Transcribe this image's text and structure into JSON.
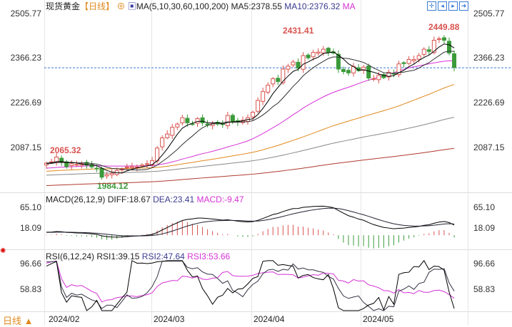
{
  "header": {
    "title": "现货黄金",
    "period": "【日线】",
    "ma_label": "MA(5,10,30,60,100,200)",
    "ma5": "MA5:2378.55",
    "ma10": "MA10:2376.32",
    "ma30": "MA"
  },
  "toolbar": [
    "crosshair-icon",
    "step-back-icon",
    "play-icon",
    "exit-icon"
  ],
  "price_axis": {
    "labels": [
      "2505.77",
      "2366.23",
      "2226.69",
      "2087.15"
    ],
    "values": [
      2505.77,
      2366.23,
      2226.69,
      2087.15
    ],
    "high_label": "2431.41",
    "high2_label": "2449.88",
    "low_label": "1984.12",
    "start_label": "2065.32"
  },
  "macd": {
    "label": "MACD(26,12,9)",
    "diff": "DIFF:18.67",
    "dea": "DEA:23.41",
    "macd": "MACD:-9.47",
    "axis": [
      "65.10",
      "18.09"
    ]
  },
  "rsi": {
    "label": "RSI(6,12,24)",
    "rsi1": "RSI1:39.15",
    "rsi2": "RSI2:47.64",
    "rsi3": "RSI3:53.66",
    "axis": [
      "96.66",
      "58.83"
    ]
  },
  "footer": {
    "period": "日线",
    "dates": [
      "2024/02",
      "2024/03",
      "2024/04",
      "2024/05"
    ]
  },
  "colors": {
    "up": "#d9534f",
    "down": "#3a9a3a",
    "ma5": "#000000",
    "ma10": "#222222",
    "ma30": "#d633d6",
    "ma60": "#e08a1e",
    "ma100": "#888888",
    "ma200": "#b03a2e",
    "dashed": "#3a7bd5"
  },
  "chart_data": {
    "type": "candlestick",
    "closes": [
      2036,
      2040,
      2055,
      2038,
      2025,
      2034,
      2032,
      2035,
      2030,
      2024,
      2020,
      1992,
      2000,
      2004,
      2013,
      2018,
      2024,
      2025,
      2024,
      2030,
      2034,
      2044,
      2083,
      2115,
      2127,
      2148,
      2158,
      2178,
      2162,
      2158,
      2175,
      2162,
      2155,
      2160,
      2158,
      2157,
      2185,
      2165,
      2164,
      2170,
      2178,
      2195,
      2232,
      2260,
      2280,
      2300,
      2291,
      2330,
      2339,
      2352,
      2333,
      2372,
      2365,
      2382,
      2383,
      2392,
      2382,
      2380,
      2330,
      2322,
      2318,
      2338,
      2325,
      2336,
      2302,
      2300,
      2310,
      2303,
      2320,
      2314,
      2346,
      2347,
      2360,
      2360,
      2372,
      2392,
      2385,
      2420,
      2425,
      2420,
      2380,
      2335
    ],
    "last_price": 2334
  }
}
